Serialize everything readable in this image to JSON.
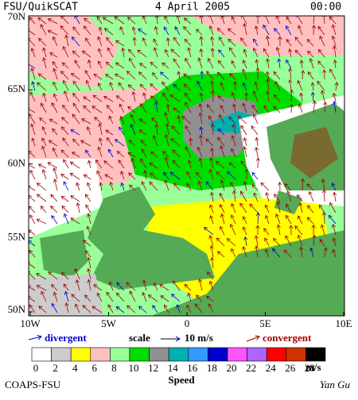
{
  "header": {
    "source": "FSU/QuikSCAT",
    "date": "4 April 2005",
    "time": "00:00"
  },
  "lat_labels": [
    "70N",
    "65N",
    "60N",
    "55N",
    "50N"
  ],
  "lon_labels": [
    "10W",
    "5W",
    "0",
    "5E",
    "10E"
  ],
  "legend": {
    "divergent": "divergent",
    "scale": "scale",
    "scale_value": "10 m/s",
    "convergent": "convergent"
  },
  "colorbar": {
    "labels": [
      "0",
      "2",
      "4",
      "6",
      "8",
      "10",
      "12",
      "14",
      "16",
      "18",
      "20",
      "22",
      "24",
      "26",
      "28"
    ],
    "unit": "m/s",
    "title": "Speed"
  },
  "footer": {
    "left": "COAPS-FSU",
    "right": "Yan Gu"
  }
}
